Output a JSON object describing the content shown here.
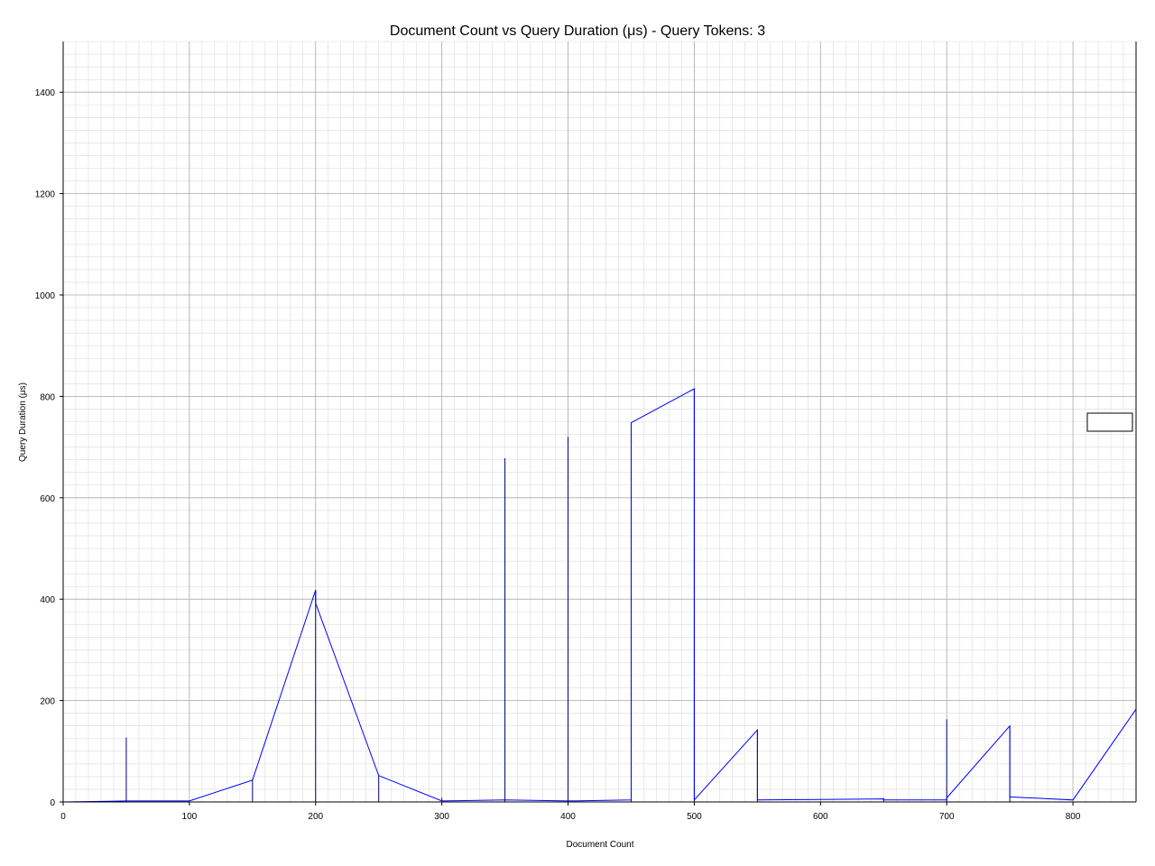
{
  "chart_data": {
    "type": "line",
    "title": "Document Count vs Query Duration (μs) - Query Tokens: 3",
    "xlabel": "Document Count",
    "ylabel": "Query Duration (μs)",
    "xlim": [
      0,
      850
    ],
    "ylim": [
      0,
      1500
    ],
    "x_ticks": [
      0,
      100,
      200,
      300,
      400,
      500,
      600,
      700,
      800
    ],
    "y_ticks": [
      0,
      200,
      400,
      600,
      800,
      1000,
      1200,
      1400
    ],
    "grid": true,
    "legend": "right, empty box",
    "colors": {
      "series": "#0000ff",
      "spikes": "#000080",
      "grid_major": "#a9a9a9",
      "grid_minor": "#dcdcdc"
    },
    "series": [
      {
        "x": [
          0,
          50,
          100,
          150,
          200,
          200,
          250,
          300,
          350,
          400,
          450,
          450,
          500,
          500,
          550,
          550,
          600,
          650,
          650,
          700,
          700,
          750,
          750,
          800,
          850
        ],
        "y": [
          0,
          2,
          2,
          43,
          418,
          392,
          52,
          2,
          4,
          2,
          4,
          748,
          815,
          4,
          142,
          4,
          5,
          6,
          4,
          4,
          8,
          150,
          10,
          4,
          183
        ]
      }
    ],
    "spikes": [
      {
        "x": 50,
        "y": 127
      },
      {
        "x": 150,
        "y": 45
      },
      {
        "x": 200,
        "y": 418
      },
      {
        "x": 250,
        "y": 52
      },
      {
        "x": 300,
        "y": 8
      },
      {
        "x": 350,
        "y": 678
      },
      {
        "x": 400,
        "y": 720
      },
      {
        "x": 450,
        "y": 748
      },
      {
        "x": 500,
        "y": 815
      },
      {
        "x": 550,
        "y": 142
      },
      {
        "x": 650,
        "y": 8
      },
      {
        "x": 700,
        "y": 163
      },
      {
        "x": 750,
        "y": 150
      }
    ]
  }
}
